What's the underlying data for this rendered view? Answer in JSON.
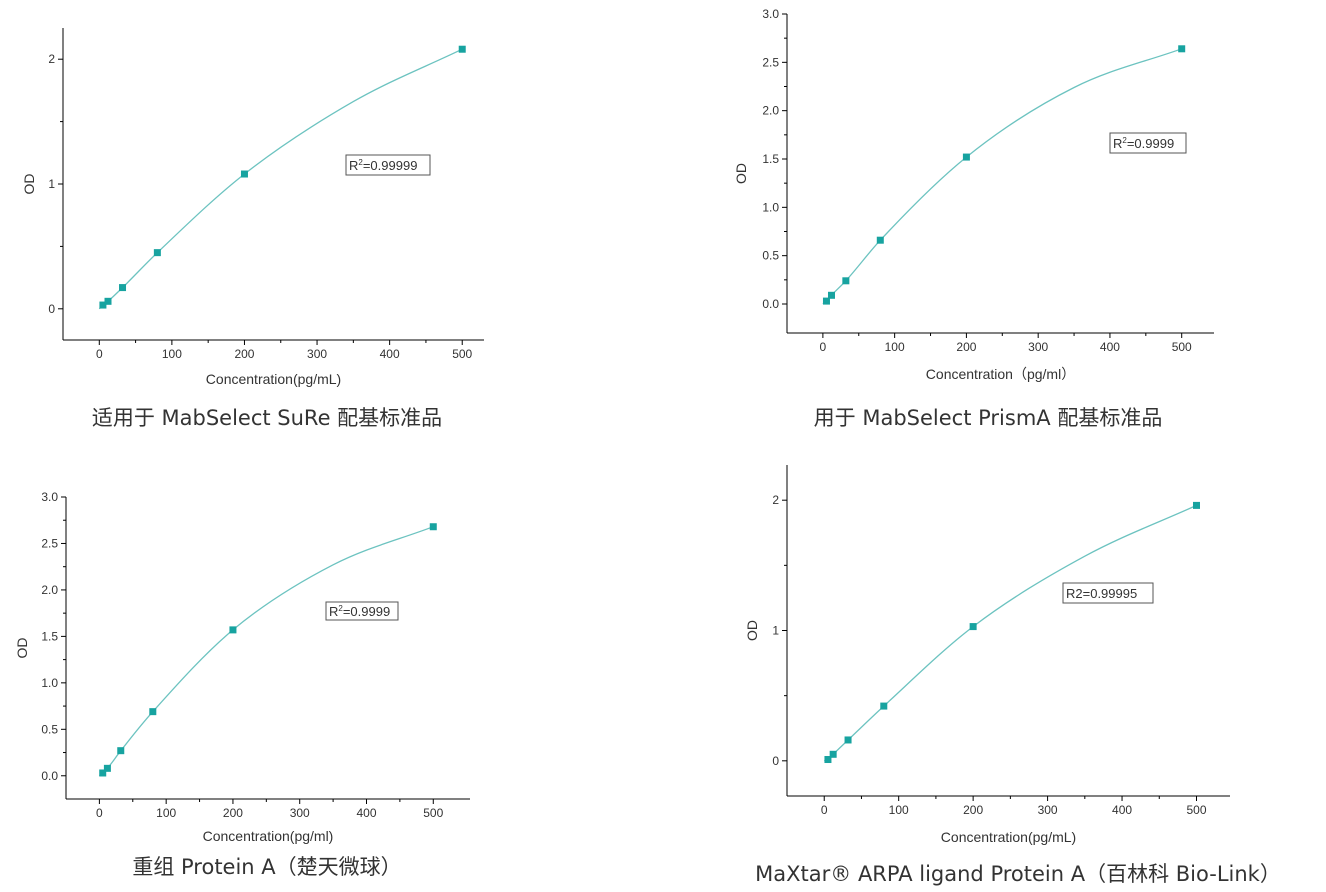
{
  "colors": {
    "curve": "#6cc3c0",
    "marker": "#17a3a0",
    "axis": "#000000",
    "text": "#333333"
  },
  "chart_data": [
    {
      "type": "scatter",
      "caption": "适用于 MabSelect SuRe 配基标准品",
      "xlabel": "Concentration(pg/mL)",
      "ylabel": "OD",
      "annotation": {
        "base": "R",
        "sup": "2",
        "rest": "=0.99999"
      },
      "xlim": [
        -50,
        530
      ],
      "ylim": [
        -0.25,
        2.25
      ],
      "xticks": [
        0,
        100,
        200,
        300,
        400,
        500
      ],
      "xtick_labels": [
        "0",
        "100",
        "200",
        "300",
        "400",
        "500"
      ],
      "yticks": [
        0,
        1,
        2
      ],
      "ytick_labels": [
        "0",
        "1",
        "2"
      ],
      "yminor": [
        0.5,
        1.5
      ],
      "x": [
        5,
        12,
        32,
        80,
        200,
        500
      ],
      "y": [
        0.03,
        0.06,
        0.17,
        0.45,
        1.08,
        2.08
      ],
      "fit_x": [
        0,
        5,
        12,
        32,
        80,
        200,
        350,
        500
      ],
      "fit_y": [
        0.0,
        0.03,
        0.06,
        0.17,
        0.45,
        1.08,
        1.66,
        2.08
      ],
      "grid": false
    },
    {
      "type": "scatter",
      "caption": "用于 MabSelect PrismA 配基标准品",
      "xlabel": "Concentration（pg/ml）",
      "ylabel": "OD",
      "annotation": {
        "base": "R",
        "sup": "2",
        "rest": "=0.9999"
      },
      "xlim": [
        -50,
        545
      ],
      "ylim": [
        -0.3,
        3.0
      ],
      "xticks": [
        0,
        100,
        200,
        300,
        400,
        500
      ],
      "xtick_labels": [
        "0",
        "100",
        "200",
        "300",
        "400",
        "500"
      ],
      "yticks": [
        0,
        0.5,
        1,
        1.5,
        2,
        2.5,
        3
      ],
      "ytick_labels": [
        "0.0",
        "0.5",
        "1.0",
        "1.5",
        "2.0",
        "2.5",
        "3.0"
      ],
      "yminor": [
        0.25,
        0.75,
        1.25,
        1.75,
        2.25,
        2.75
      ],
      "x": [
        5,
        12,
        32,
        80,
        200,
        500
      ],
      "y": [
        0.03,
        0.09,
        0.24,
        0.66,
        1.52,
        2.64
      ],
      "fit_x": [
        0,
        5,
        12,
        32,
        80,
        200,
        350,
        500
      ],
      "fit_y": [
        0.0,
        0.03,
        0.09,
        0.24,
        0.66,
        1.52,
        2.24,
        2.64
      ],
      "grid": false
    },
    {
      "type": "scatter",
      "caption": "重组 Protein A（楚天微球）",
      "xlabel": "Concentration(pg/ml)",
      "ylabel": "OD",
      "annotation": {
        "base": "R",
        "sup": "2",
        "rest": "=0.9999"
      },
      "xlim": [
        -50,
        555
      ],
      "ylim": [
        -0.25,
        3.0
      ],
      "xticks": [
        0,
        100,
        200,
        300,
        400,
        500
      ],
      "xtick_labels": [
        "0",
        "100",
        "200",
        "300",
        "400",
        "500"
      ],
      "yticks": [
        0,
        0.5,
        1,
        1.5,
        2,
        2.5,
        3
      ],
      "ytick_labels": [
        "0.0",
        "0.5",
        "1.0",
        "1.5",
        "2.0",
        "2.5",
        "3.0"
      ],
      "yminor": [
        0.25,
        0.75,
        1.25,
        1.75,
        2.25,
        2.75
      ],
      "x": [
        5,
        12,
        32,
        80,
        200,
        500
      ],
      "y": [
        0.03,
        0.08,
        0.27,
        0.69,
        1.57,
        2.68
      ],
      "fit_x": [
        0,
        5,
        12,
        32,
        80,
        200,
        350,
        500
      ],
      "fit_y": [
        0.0,
        0.03,
        0.08,
        0.27,
        0.69,
        1.57,
        2.27,
        2.68
      ],
      "grid": false
    },
    {
      "type": "scatter",
      "caption": "MaXtar® ARPA ligand Protein A（百林科 Bio-Link）",
      "xlabel": "Concentration(pg/mL)",
      "ylabel": "OD",
      "annotation": {
        "base": "R2=0.99995",
        "sup": "",
        "rest": ""
      },
      "xlim": [
        -50,
        545
      ],
      "ylim": [
        -0.27,
        2.27
      ],
      "xticks": [
        0,
        100,
        200,
        300,
        400,
        500
      ],
      "xtick_labels": [
        "0",
        "100",
        "200",
        "300",
        "400",
        "500"
      ],
      "yticks": [
        0,
        1,
        2
      ],
      "ytick_labels": [
        "0",
        "1",
        "2"
      ],
      "yminor": [
        0.5,
        1.5
      ],
      "x": [
        5,
        12,
        32,
        80,
        200,
        500
      ],
      "y": [
        0.01,
        0.05,
        0.16,
        0.42,
        1.03,
        1.96
      ],
      "fit_x": [
        0,
        5,
        12,
        32,
        80,
        200,
        350,
        500
      ],
      "fit_y": [
        0.0,
        0.01,
        0.05,
        0.16,
        0.42,
        1.03,
        1.57,
        1.96
      ],
      "grid": false
    }
  ]
}
